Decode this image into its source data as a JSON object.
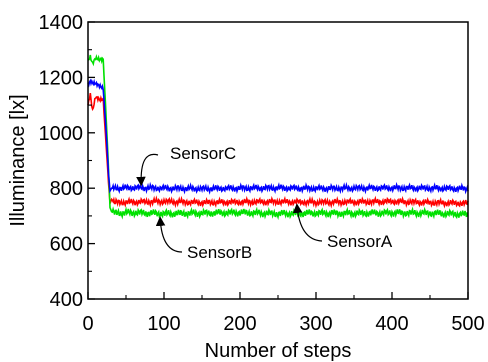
{
  "chart_data": {
    "type": "line",
    "title": "",
    "xlabel": "Number of steps",
    "ylabel": "Illuminance [lx]",
    "xlim": [
      0,
      500
    ],
    "ylim": [
      400,
      1400
    ],
    "xticks": [
      0,
      100,
      200,
      300,
      400,
      500
    ],
    "yticks": [
      400,
      600,
      800,
      1000,
      1200,
      1400
    ],
    "xtick_labels": [
      "0",
      "100",
      "200",
      "300",
      "400",
      "500"
    ],
    "ytick_labels": [
      "400",
      "600",
      "800",
      "1000",
      "1200",
      "1400"
    ],
    "grid": false,
    "series": [
      {
        "name": "SensorA",
        "color": "#ff0000",
        "x": [
          0,
          3,
          6,
          10,
          15,
          20,
          24,
          27,
          29,
          31,
          35,
          60,
          100,
          150,
          200,
          250,
          300,
          350,
          400,
          450,
          500
        ],
        "values": [
          1100,
          1140,
          1080,
          1130,
          1120,
          1120,
          950,
          820,
          745,
          760,
          748,
          750,
          752,
          748,
          750,
          751,
          749,
          750,
          752,
          748,
          745
        ],
        "amplitude": 12
      },
      {
        "name": "SensorB",
        "color": "#00e000",
        "x": [
          0,
          3,
          6,
          10,
          15,
          20,
          24,
          27,
          29,
          31,
          35,
          60,
          100,
          150,
          200,
          250,
          300,
          350,
          400,
          450,
          500
        ],
        "values": [
          1260,
          1275,
          1250,
          1270,
          1265,
          1265,
          1050,
          870,
          730,
          715,
          710,
          712,
          708,
          710,
          712,
          708,
          710,
          709,
          711,
          710,
          705
        ],
        "amplitude": 14
      },
      {
        "name": "SensorC",
        "color": "#0000ff",
        "x": [
          0,
          3,
          6,
          10,
          15,
          20,
          24,
          27,
          29,
          31,
          35,
          60,
          100,
          150,
          200,
          250,
          300,
          350,
          400,
          450,
          500
        ],
        "values": [
          1175,
          1185,
          1180,
          1178,
          1170,
          1160,
          1000,
          850,
          790,
          800,
          800,
          802,
          800,
          798,
          800,
          801,
          799,
          800,
          801,
          800,
          798
        ],
        "amplitude": 12
      }
    ],
    "annotations": [
      {
        "text": "SensorC",
        "target_x": 70,
        "target_y": 815
      },
      {
        "text": "SensorB",
        "target_x": 95,
        "target_y": 690
      },
      {
        "text": "SensorA",
        "target_x": 275,
        "target_y": 737
      }
    ]
  }
}
